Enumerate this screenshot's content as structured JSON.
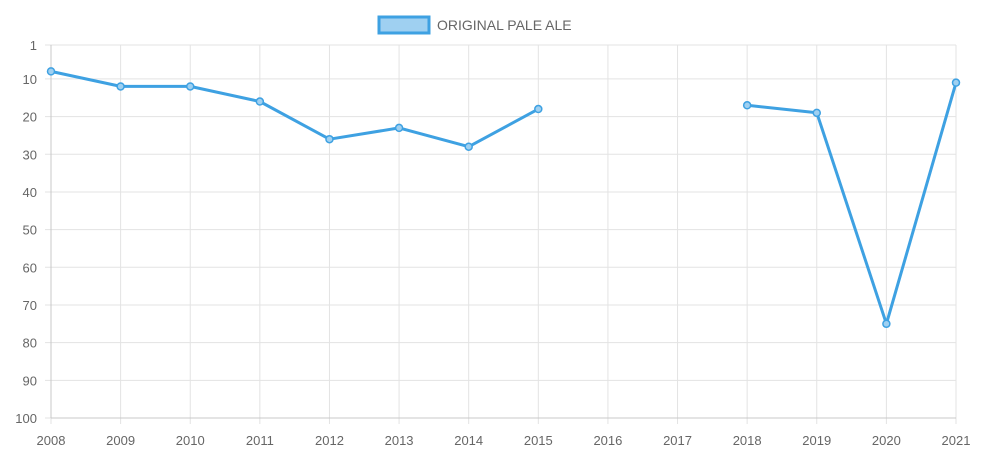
{
  "chart_data": {
    "type": "line",
    "x": [
      "2008",
      "2009",
      "2010",
      "2011",
      "2012",
      "2013",
      "2014",
      "2015",
      "2016",
      "2017",
      "2018",
      "2019",
      "2020",
      "2021"
    ],
    "series": [
      {
        "name": "ORIGINAL PALE ALE",
        "values": [
          8,
          12,
          12,
          16,
          26,
          23,
          28,
          18,
          null,
          null,
          17,
          19,
          75,
          11
        ]
      }
    ],
    "y_axis": {
      "reversed": true,
      "min": 1,
      "max": 100,
      "ticks": [
        1,
        10,
        20,
        30,
        40,
        50,
        60,
        70,
        80,
        90,
        100
      ]
    },
    "grid": true,
    "legend_position": "top-center",
    "colors": {
      "line": "#3ea1e2",
      "fill": "#9fd0f1"
    }
  }
}
